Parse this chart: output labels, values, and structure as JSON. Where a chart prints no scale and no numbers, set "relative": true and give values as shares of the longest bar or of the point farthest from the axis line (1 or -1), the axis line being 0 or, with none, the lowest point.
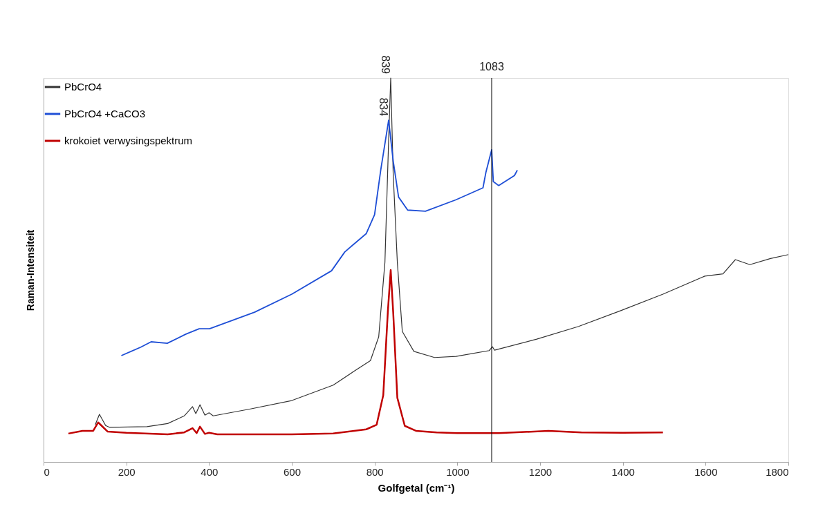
{
  "chart_data": {
    "type": "line",
    "relative": true,
    "xlabel": "Golfgetal (cm⁻¹)",
    "ylabel": "Raman-Intensiteit",
    "xlim": [
      0,
      1800
    ],
    "xticks": [
      0,
      200,
      400,
      600,
      800,
      1000,
      1200,
      1400,
      1600,
      1800
    ],
    "legend": "top left",
    "grid": false,
    "series": [
      {
        "name": "PbCrO4",
        "color": "#333333",
        "x": [
          125,
          135,
          150,
          160,
          250,
          300,
          340,
          360,
          368,
          378,
          390,
          400,
          410,
          500,
          600,
          700,
          750,
          790,
          810,
          825,
          834,
          839,
          845,
          855,
          867,
          895,
          945,
          997,
          1077,
          1085,
          1090,
          1192,
          1293,
          1395,
          1497,
          1598,
          1642,
          1672,
          1707,
          1757,
          1800
        ],
        "values": [
          0.097,
          0.124,
          0.095,
          0.09,
          0.092,
          0.1,
          0.12,
          0.144,
          0.126,
          0.149,
          0.122,
          0.128,
          0.12,
          0.138,
          0.16,
          0.2,
          0.236,
          0.264,
          0.326,
          0.52,
          0.84,
          1.0,
          0.75,
          0.52,
          0.34,
          0.288,
          0.272,
          0.275,
          0.29,
          0.3,
          0.291,
          0.32,
          0.353,
          0.394,
          0.437,
          0.484,
          0.49,
          0.527,
          0.514,
          0.53,
          0.54
        ]
      },
      {
        "name": "PbCrO4 +CaCO3",
        "color": "#1f4fd6",
        "x": [
          188,
          235,
          260,
          299,
          344,
          376,
          401,
          510,
          600,
          696,
          728,
          780,
          800,
          815,
          834,
          845,
          858,
          880,
          923,
          997,
          1062,
          1069,
          1083,
          1087,
          1100,
          1138,
          1145
        ],
        "values": [
          0.277,
          0.299,
          0.313,
          0.309,
          0.333,
          0.347,
          0.347,
          0.39,
          0.437,
          0.498,
          0.547,
          0.595,
          0.644,
          0.761,
          0.89,
          0.784,
          0.69,
          0.656,
          0.653,
          0.683,
          0.714,
          0.754,
          0.813,
          0.73,
          0.72,
          0.746,
          0.76
        ]
      },
      {
        "name": "krokoiet verwysingspektrum",
        "color": "#c00000",
        "x": [
          60,
          94,
          120,
          132,
          155,
          200,
          300,
          340,
          360,
          370,
          378,
          390,
          400,
          420,
          600,
          700,
          780,
          805,
          821,
          832,
          839,
          845,
          855,
          873,
          900,
          950,
          1000,
          1100,
          1220,
          1300,
          1400,
          1497
        ],
        "values": [
          0.074,
          0.081,
          0.081,
          0.103,
          0.079,
          0.076,
          0.072,
          0.077,
          0.088,
          0.075,
          0.092,
          0.073,
          0.076,
          0.072,
          0.072,
          0.074,
          0.085,
          0.097,
          0.174,
          0.39,
          0.5,
          0.39,
          0.167,
          0.094,
          0.081,
          0.077,
          0.075,
          0.075,
          0.081,
          0.077,
          0.076,
          0.077
        ]
      }
    ],
    "ref_lines": [
      {
        "axis": "x",
        "value": 1083,
        "label": "1083",
        "color": "#000000"
      }
    ],
    "annotations": [
      {
        "text": "839",
        "x": 839,
        "y": 1.0
      },
      {
        "text": "834",
        "x": 834,
        "y": 0.89
      }
    ]
  }
}
